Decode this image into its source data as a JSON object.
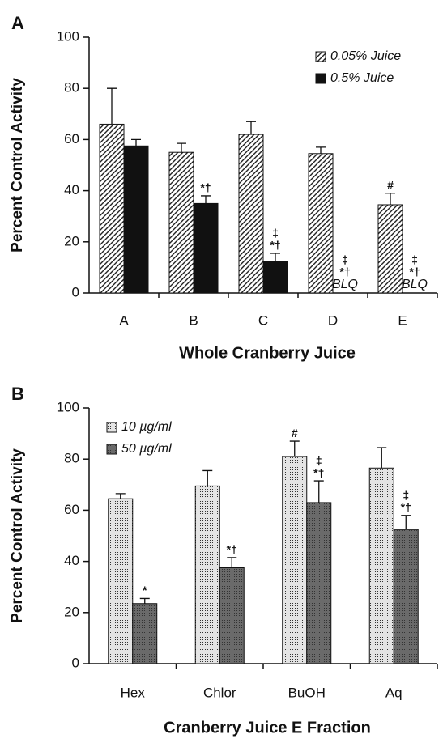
{
  "chart_data": [
    {
      "type": "bar",
      "panel_label": "A",
      "y_label": "Percent Control Activity",
      "x_label": "Whole Cranberry Juice",
      "categories": [
        "A",
        "B",
        "C",
        "D",
        "E"
      ],
      "ylim": [
        0,
        100
      ],
      "yticks": [
        0,
        20,
        40,
        60,
        80,
        100
      ],
      "legend": "upper right",
      "series": [
        {
          "name": "0.05% Juice",
          "color": "#222222",
          "pattern": "hatch",
          "values": [
            66,
            55,
            62,
            54.5,
            34.5
          ],
          "errors": [
            14,
            3.5,
            5,
            2.5,
            4.5
          ],
          "annotations": [
            null,
            null,
            null,
            null,
            [
              "#"
            ]
          ]
        },
        {
          "name": "0.5% Juice",
          "color": "#111111",
          "pattern": "solid",
          "values": [
            57.5,
            35,
            12.5,
            null,
            null
          ],
          "errors": [
            2.5,
            3,
            3,
            null,
            null
          ],
          "annotations": [
            null,
            [
              "*†"
            ],
            [
              "‡",
              "*†"
            ],
            [
              "‡",
              "*†",
              "BLQ"
            ],
            [
              "‡",
              "*†",
              "BLQ"
            ]
          ]
        }
      ]
    },
    {
      "type": "bar",
      "panel_label": "B",
      "y_label": "Percent Control Activity",
      "x_label": "Cranberry Juice E Fraction",
      "categories": [
        "Hex",
        "Chlor",
        "BuOH",
        "Aq"
      ],
      "ylim": [
        0,
        100
      ],
      "yticks": [
        0,
        20,
        40,
        60,
        80,
        100
      ],
      "legend": "upper left",
      "series": [
        {
          "name": "10 µg/ml",
          "color": "#e4e4e4",
          "pattern": "dots",
          "values": [
            64.5,
            69.5,
            81,
            76.5
          ],
          "errors": [
            2,
            6,
            6,
            8
          ],
          "annotations": [
            null,
            null,
            [
              "#"
            ],
            null
          ]
        },
        {
          "name": "50 µg/ml",
          "color": "#6a6a6a",
          "pattern": "dots",
          "values": [
            23.5,
            37.5,
            63,
            52.5
          ],
          "errors": [
            2,
            4,
            8.5,
            5.5
          ],
          "annotations": [
            [
              "*"
            ],
            [
              "*†"
            ],
            [
              "‡",
              "*†"
            ],
            [
              "‡",
              "*†"
            ]
          ]
        }
      ]
    }
  ]
}
